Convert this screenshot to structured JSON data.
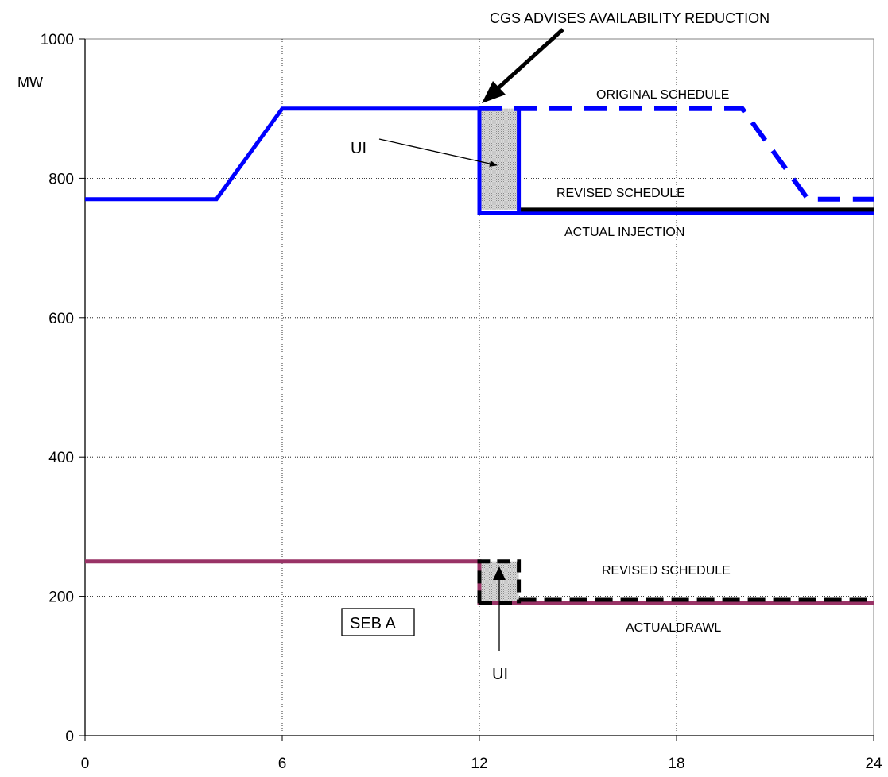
{
  "chart_data": {
    "type": "line",
    "title": "",
    "xlabel": "",
    "ylabel": "MW",
    "xlim": [
      0,
      24
    ],
    "ylim": [
      0,
      1000
    ],
    "x_ticks": [
      "0",
      "6",
      "12",
      "18",
      "24"
    ],
    "y_ticks": [
      "0",
      "200",
      "400",
      "600",
      "800",
      "1000"
    ],
    "grid": "dotted",
    "legend": "none",
    "series": [
      {
        "key": "cgs_original_schedule",
        "color": "#0000ff",
        "style": "dashed",
        "x": [
          12,
          20,
          22,
          24
        ],
        "y": [
          900,
          900,
          770,
          770
        ]
      },
      {
        "key": "cgs_actual_injection",
        "color": "#0000ff",
        "style": "solid",
        "x": [
          0,
          4,
          6,
          12,
          12,
          24
        ],
        "y": [
          770,
          770,
          900,
          900,
          750,
          750
        ]
      },
      {
        "key": "cgs_revised_schedule",
        "color": "#000000",
        "style": "solid",
        "x": [
          13.2,
          24
        ],
        "y": [
          755,
          755
        ]
      },
      {
        "key": "seb_actual_drawl",
        "color": "#993366",
        "style": "solid",
        "x": [
          0,
          12,
          12,
          24
        ],
        "y": [
          250,
          250,
          190,
          190
        ]
      },
      {
        "key": "seb_revised_schedule",
        "color": "#000000",
        "style": "dashed",
        "x": [
          13.2,
          24
        ],
        "y": [
          195,
          195
        ]
      }
    ],
    "shaded_regions": [
      {
        "key": "ui_cgs",
        "x": [
          12,
          13.2
        ],
        "y": [
          755,
          900
        ]
      },
      {
        "key": "ui_seb",
        "x": [
          12,
          13.2
        ],
        "y": [
          190,
          250
        ]
      }
    ],
    "annotations": {
      "cgs_advises": "CGS ADVISES  AVAILABILITY REDUCTION",
      "original_schedule": "ORIGINAL  SCHEDULE",
      "revised_schedule_top": "REVISED SCHEDULE",
      "actual_injection": "ACTUAL  INJECTION",
      "ui_top": "UI",
      "revised_schedule_bottom": "REVISED SCHEDULE",
      "actual_drawl": "ACTUALDRAWL",
      "seb_box": "SEB A",
      "ui_bottom": "UI"
    },
    "colors": {
      "blue": "#0000ff",
      "maroon": "#993366",
      "black": "#000000",
      "shade": "#c0c0c0"
    }
  }
}
